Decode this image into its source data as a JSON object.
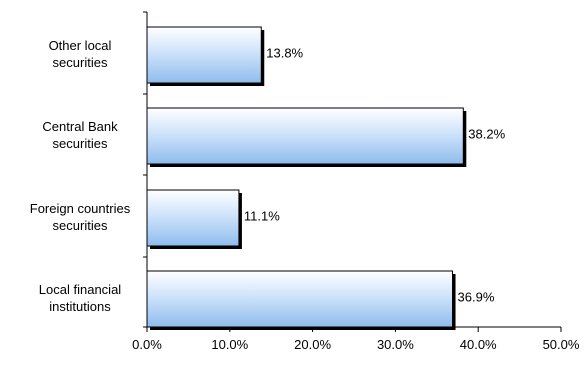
{
  "chart_data": {
    "type": "bar",
    "orientation": "horizontal",
    "categories": [
      [
        "Other local",
        "securities"
      ],
      [
        "Central Bank",
        "securities"
      ],
      [
        "Foreign countries",
        "securities"
      ],
      [
        "Local financial",
        "institutions"
      ]
    ],
    "values": [
      13.8,
      38.2,
      11.1,
      36.9
    ],
    "value_labels": [
      "13.8%",
      "38.2%",
      "11.1%",
      "36.9%"
    ],
    "xlim": [
      0,
      50
    ],
    "x_ticks": [
      0,
      10,
      20,
      30,
      40,
      50
    ],
    "x_tick_labels": [
      "0.0%",
      "10.0%",
      "20.0%",
      "30.0%",
      "40.0%",
      "50.0%"
    ],
    "title": "",
    "xlabel": "",
    "ylabel": "",
    "grid": false,
    "legend": "none",
    "colors": {
      "bar_light": "#ffffff",
      "bar_mid": "#cfe3fb",
      "bar_dark": "#8fbcec",
      "bar_outline": "#000000",
      "bar_shadow": "#000000",
      "axis": "#000000",
      "text": "#000000"
    }
  }
}
